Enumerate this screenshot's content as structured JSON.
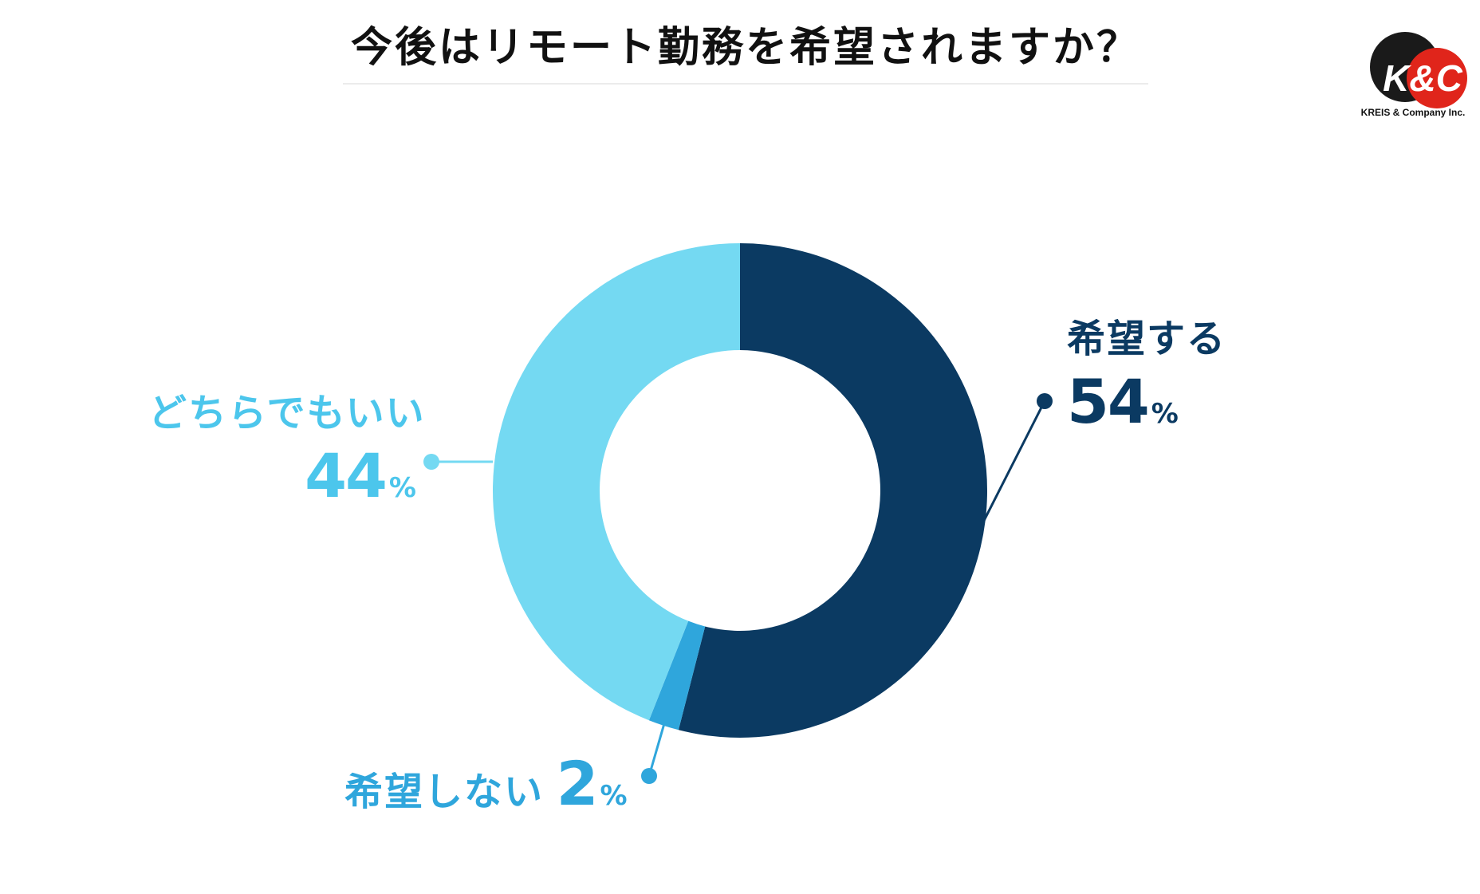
{
  "header": {
    "title": "今後はリモート勤務を希望されますか？"
  },
  "logo": {
    "mark": "K&C",
    "company": "KREIS & Company Inc."
  },
  "chart_data": {
    "type": "pie",
    "style": "donut",
    "title": "今後はリモート勤務を希望されますか？",
    "unit": "%",
    "slices": [
      {
        "label": "希望する",
        "value": 54,
        "value_label": "54",
        "color": "#0b3a62"
      },
      {
        "label": "希望しない",
        "value": 2,
        "value_label": "2",
        "color": "#2fa6dc"
      },
      {
        "label": "どちらでもいい",
        "value": 44,
        "value_label": "44",
        "color": "#74d9f2"
      }
    ],
    "start": "top",
    "direction": "clockwise",
    "legend": "none"
  }
}
